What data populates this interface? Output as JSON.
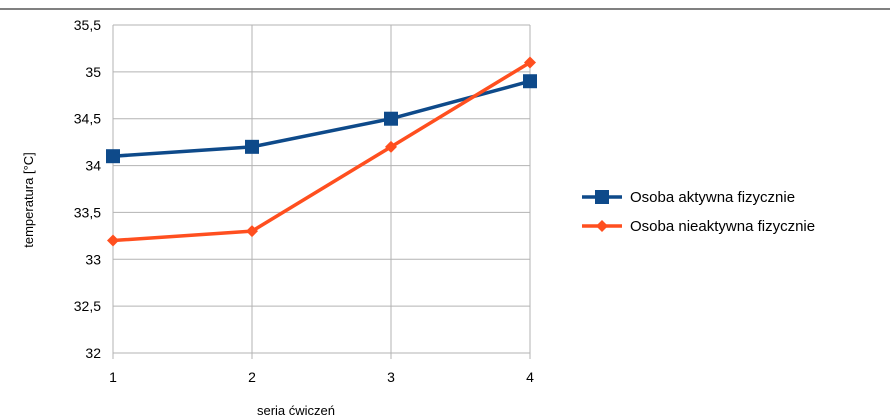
{
  "chart_data": {
    "type": "line",
    "title": "",
    "xlabel": "seria ćwiczeń",
    "ylabel": "temperatura [°C]",
    "x": [
      1,
      2,
      3,
      4
    ],
    "x_tick_labels": [
      "1",
      "2",
      "3",
      "4"
    ],
    "ylim": [
      32,
      35.5
    ],
    "y_ticks": [
      32,
      32.5,
      33,
      33.5,
      34,
      34.5,
      35,
      35.5
    ],
    "y_tick_labels": [
      "32",
      "32,5",
      "33",
      "33,5",
      "34",
      "34,5",
      "35",
      "35,5"
    ],
    "grid": true,
    "legend_position": "right",
    "series": [
      {
        "name": "Osoba aktywna fizycznie",
        "values": [
          34.1,
          34.2,
          34.5,
          34.9
        ],
        "color": "#0e4a8a",
        "marker": "square"
      },
      {
        "name": "Osoba nieaktywna fizycznie",
        "values": [
          33.2,
          33.3,
          34.2,
          35.1
        ],
        "color": "#ff4f1f",
        "marker": "diamond"
      }
    ]
  }
}
